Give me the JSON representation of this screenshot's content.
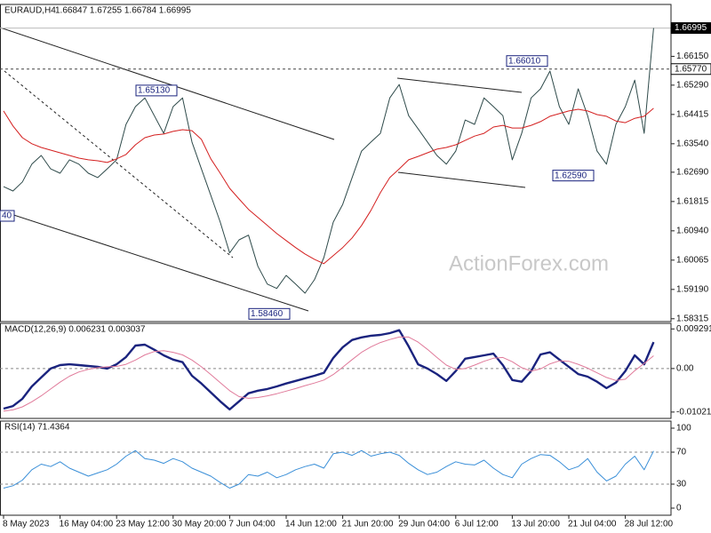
{
  "chart_data": [
    {
      "type": "line",
      "title": "EURAUD,H4",
      "subtitle": "1.66847 1.67255 1.66784 1.66995",
      "watermark": "ActionForex.com",
      "ylim": [
        1.5823,
        1.677
      ],
      "yticks": [
        1.58315,
        {
          "value": 1.5919,
          "label": "1.59190"
        },
        1.60065,
        {
          "value": 1.6094,
          "label": "1.60940"
        },
        1.61815,
        {
          "value": 1.6269,
          "label": "1.62690"
        },
        {
          "value": 1.6354,
          "label": "1.63540"
        },
        1.64415,
        {
          "value": 1.6529,
          "label": "1.65290"
        },
        {
          "value": 1.6615,
          "label": "1.66150"
        }
      ],
      "grid": false,
      "series": [
        {
          "color": "#2e4a4a",
          "values": [
            1.6226,
            1.6213,
            1.624,
            1.6293,
            1.6319,
            1.6279,
            1.6266,
            1.6306,
            1.6293,
            1.6266,
            1.6253,
            1.6279,
            1.6306,
            1.6412,
            1.6465,
            1.6491,
            1.6438,
            1.6385,
            1.6465,
            1.6491,
            1.6359,
            1.6279,
            1.62,
            1.612,
            1.6028,
            1.6067,
            1.6081,
            1.5988,
            1.5935,
            1.5922,
            1.5961,
            1.5935,
            1.5908,
            1.5948,
            1.6014,
            1.612,
            1.6173,
            1.6253,
            1.6332,
            1.6359,
            1.6385,
            1.6491,
            1.6531,
            1.6438,
            1.6399,
            1.6359,
            1.6319,
            1.6293,
            1.6332,
            1.6425,
            1.6412,
            1.6491,
            1.6465,
            1.6438,
            1.6306,
            1.6385,
            1.6491,
            1.6518,
            1.6571,
            1.6465,
            1.6412,
            1.6518,
            1.6438,
            1.6332,
            1.6293,
            1.6412,
            1.6465,
            1.6544,
            1.6385,
            1.66995
          ]
        },
        {
          "color": "#d42020",
          "values": [
            1.6452,
            1.6407,
            1.6372,
            1.6354,
            1.6343,
            1.6335,
            1.6327,
            1.6319,
            1.6311,
            1.6306,
            1.6303,
            1.6298,
            1.6309,
            1.6322,
            1.6351,
            1.6372,
            1.638,
            1.6383,
            1.6391,
            1.6396,
            1.6393,
            1.6367,
            1.6309,
            1.6266,
            1.6221,
            1.6189,
            1.6158,
            1.6134,
            1.611,
            1.6086,
            1.6065,
            1.6044,
            1.6025,
            1.6009,
            1.5996,
            1.602,
            1.6044,
            1.6073,
            1.611,
            1.6155,
            1.6208,
            1.6253,
            1.6279,
            1.6306,
            1.6316,
            1.6327,
            1.6338,
            1.6343,
            1.6351,
            1.6364,
            1.6377,
            1.6385,
            1.6404,
            1.6409,
            1.6401,
            1.6401,
            1.6409,
            1.642,
            1.6436,
            1.6444,
            1.6452,
            1.6457,
            1.6452,
            1.6441,
            1.6436,
            1.6422,
            1.6417,
            1.643,
            1.6436,
            1.646
          ]
        }
      ],
      "price_lines": [
        {
          "value": 1.6577,
          "label": "1.65770",
          "style": "dashed"
        },
        {
          "value": 1.66995,
          "style": "current"
        }
      ],
      "annotations": [
        {
          "value": 1.6601,
          "label": "1.66010"
        },
        {
          "value": 1.6513,
          "label": "1.65130"
        },
        {
          "value": 1.6259,
          "label": "1.62590"
        },
        {
          "value": 1.5846,
          "label": "1.58460"
        },
        {
          "label": "40"
        }
      ]
    },
    {
      "type": "line",
      "title": "MACD(12,26,9) 0.006231 0.003037",
      "ylim": [
        -0.0117,
        0.0106
      ],
      "yticks": [
        -0.010211,
        {
          "value": 0,
          "label": "0.00"
        },
        0.009291
      ],
      "levels": [
        0
      ],
      "series": [
        {
          "color": "#1a237e",
          "values": [
            -0.0094,
            -0.0088,
            -0.0071,
            -0.0042,
            -0.0021,
            0,
            0.0008,
            0.001,
            0.0008,
            0.0006,
            0.0004,
            0,
            0.001,
            0.0027,
            0.0054,
            0.0056,
            0.0044,
            0.0031,
            0.0021,
            0.0015,
            -0.0017,
            -0.0035,
            -0.0056,
            -0.0077,
            -0.0096,
            -0.0077,
            -0.0058,
            -0.0052,
            -0.0048,
            -0.0042,
            -0.0035,
            -0.0029,
            -0.0023,
            -0.0017,
            -0.001,
            0.0025,
            0.005,
            0.0067,
            0.0073,
            0.0077,
            0.0079,
            0.0083,
            0.009,
            0.0052,
            0.001,
            0,
            -0.0013,
            -0.0029,
            -0.0006,
            0.0023,
            0.0027,
            0.0031,
            0.0035,
            0.0008,
            -0.0027,
            -0.0031,
            -0.0006,
            0.0033,
            0.0038,
            0.0021,
            0.0004,
            -0.0013,
            -0.0019,
            -0.0031,
            -0.0046,
            -0.0033,
            -0.0006,
            0.0031,
            0.001,
            0.0062
          ]
        },
        {
          "color": "#e07a9a",
          "values": [
            -0.01,
            -0.0097,
            -0.009,
            -0.0078,
            -0.0064,
            -0.0048,
            -0.0032,
            -0.0018,
            -0.0008,
            -0.0002,
            0.0002,
            0.0004,
            0.0005,
            0.001,
            0.002,
            0.0032,
            0.004,
            0.0042,
            0.0038,
            0.0032,
            0.002,
            0.0004,
            -0.0014,
            -0.0033,
            -0.0052,
            -0.0066,
            -0.007,
            -0.0068,
            -0.0064,
            -0.0059,
            -0.0053,
            -0.0047,
            -0.004,
            -0.0034,
            -0.0027,
            -0.0014,
            0.0003,
            0.0021,
            0.0038,
            0.0051,
            0.0061,
            0.0068,
            0.0074,
            0.0074,
            0.0062,
            0.0045,
            0.0026,
            0.0008,
            -0.0002,
            0,
            0.0008,
            0.0017,
            0.0024,
            0.0026,
            0.0016,
            0.0002,
            -0.0006,
            -0.0001,
            0.0011,
            0.0018,
            0.0017,
            0.001,
            0.0001,
            -0.001,
            -0.0021,
            -0.0028,
            -0.0025,
            -0.0005,
            0.0012,
            0.003
          ]
        }
      ]
    },
    {
      "type": "line",
      "title": "RSI(14) 71.4364",
      "ylim": [
        -8.9,
        108.9
      ],
      "yticks": [
        0,
        30,
        70,
        100
      ],
      "levels": [
        30,
        70
      ],
      "series": [
        {
          "color": "#3a8fd8",
          "values": [
            25,
            28,
            35,
            48,
            55,
            52,
            58,
            50,
            45,
            40,
            44,
            48,
            55,
            65,
            72,
            62,
            60,
            56,
            62,
            58,
            50,
            45,
            40,
            32,
            25,
            30,
            42,
            40,
            45,
            38,
            42,
            48,
            52,
            55,
            50,
            68,
            70,
            66,
            72,
            65,
            68,
            70,
            66,
            56,
            48,
            42,
            45,
            52,
            58,
            55,
            54,
            60,
            50,
            42,
            38,
            55,
            62,
            67,
            66,
            58,
            48,
            52,
            62,
            45,
            34,
            40,
            55,
            65,
            48,
            71.4
          ]
        }
      ],
      "categories": [
        "8 May 2023",
        null,
        null,
        null,
        null,
        null,
        "16 May 04:00",
        null,
        null,
        null,
        null,
        null,
        "23 May 12:00",
        null,
        null,
        null,
        null,
        null,
        "30 May 20:00",
        null,
        null,
        null,
        null,
        null,
        "7 Jun 04:00",
        null,
        null,
        null,
        null,
        null,
        "14 Jun 12:00",
        null,
        null,
        null,
        null,
        null,
        "21 Jun 20:00",
        null,
        null,
        null,
        null,
        null,
        "29 Jun 04:00",
        null,
        null,
        null,
        null,
        null,
        "6 Jul 12:00",
        null,
        null,
        null,
        null,
        null,
        "13 Jul 20:00",
        null,
        null,
        null,
        null,
        null,
        "21 Jul 04:00",
        null,
        null,
        null,
        null,
        null,
        "28 Jul 12:00",
        null,
        null,
        null
      ]
    }
  ]
}
